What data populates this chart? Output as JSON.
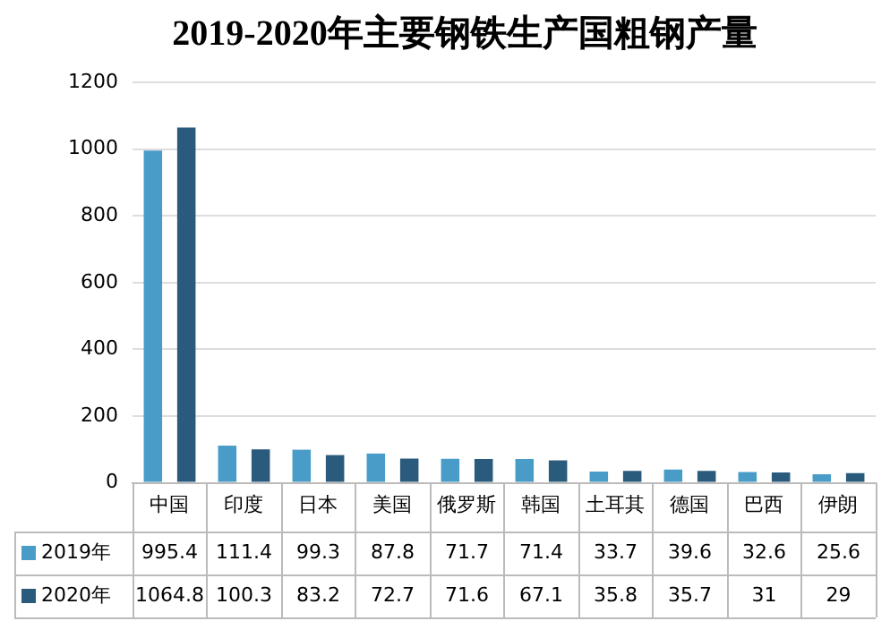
{
  "chart_data": {
    "type": "bar",
    "title": "2019-2020年主要钢铁生产国粗钢产量",
    "categories": [
      "中国",
      "印度",
      "日本",
      "美国",
      "俄罗斯",
      "韩国",
      "土耳其",
      "德国",
      "巴西",
      "伊朗"
    ],
    "series": [
      {
        "name": "2019年",
        "color": "#4a9cc8",
        "values": [
          995.4,
          111.4,
          99.3,
          87.8,
          71.7,
          71.4,
          33.7,
          39.6,
          32.6,
          25.6
        ]
      },
      {
        "name": "2020年",
        "color": "#2a5b7c",
        "values": [
          1064.8,
          100.3,
          83.2,
          72.7,
          71.6,
          67.1,
          35.8,
          35.7,
          31,
          29
        ]
      }
    ],
    "ylim": [
      0,
      1200
    ],
    "yticks": [
      0,
      200,
      400,
      600,
      800,
      1000,
      1200
    ],
    "grid": "y",
    "legend": "bottom",
    "data_labels": true
  }
}
